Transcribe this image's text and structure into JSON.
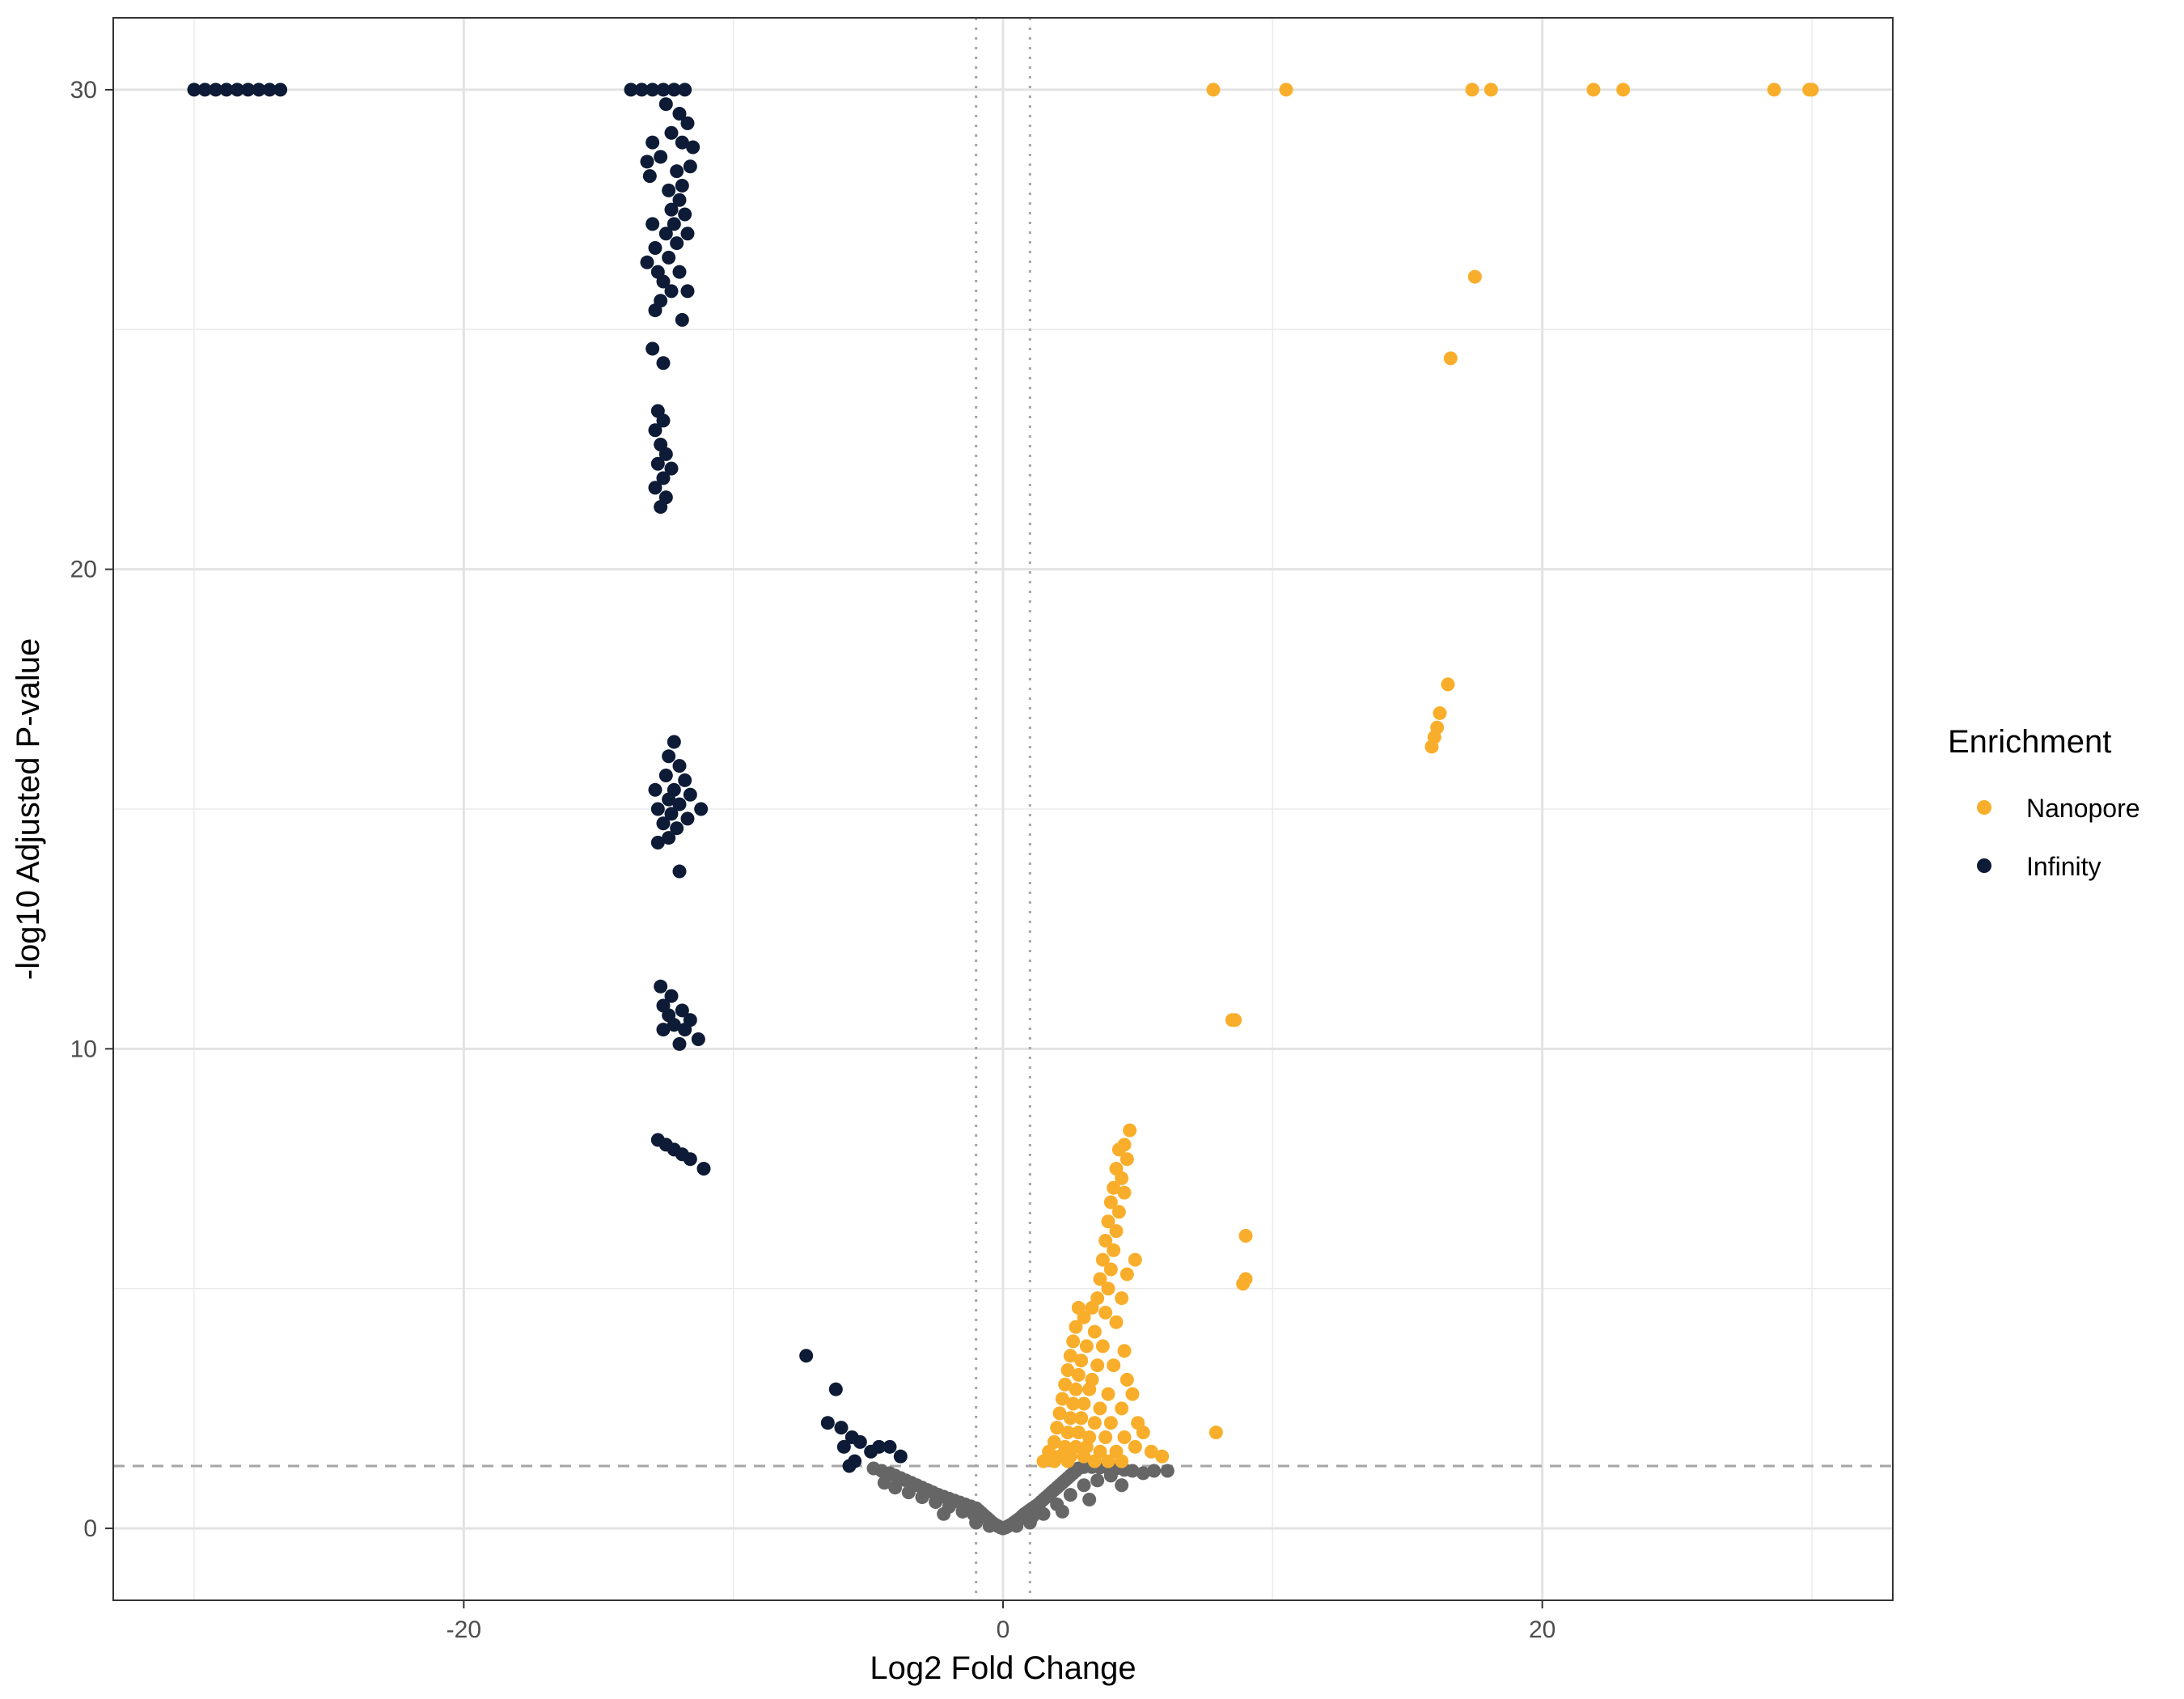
{
  "chart_data": {
    "type": "scatter",
    "title": "",
    "xlabel": "Log2 Fold Change",
    "ylabel": "-log10 Adjusted P-value",
    "xlim": [
      -33,
      33
    ],
    "ylim": [
      -1.5,
      31.5
    ],
    "x_ticks": [
      {
        "value": -20,
        "label": "-20"
      },
      {
        "value": 0,
        "label": "0"
      },
      {
        "value": 20,
        "label": "20"
      }
    ],
    "y_ticks": [
      {
        "value": 0,
        "label": "0"
      },
      {
        "value": 10,
        "label": "10"
      },
      {
        "value": 20,
        "label": "20"
      },
      {
        "value": 30,
        "label": "30"
      }
    ],
    "x_minor_ticks": [
      -30,
      -10,
      10,
      30
    ],
    "y_minor_ticks": [
      5,
      15,
      25
    ],
    "grid": true,
    "reference_lines": {
      "vertical_dotted": [
        -1,
        1
      ],
      "horizontal_dashed": 1.3
    },
    "legend": {
      "title": "Enrichment",
      "placement": "right",
      "entries": [
        {
          "label": "Nanopore",
          "color": "#F9AE2B"
        },
        {
          "label": "Infinity",
          "color": "#0E1B36"
        }
      ]
    },
    "colors": {
      "Nanopore": "#F9AE2B",
      "Infinity": "#0E1B36",
      "Not significant": "#666666"
    },
    "series": [
      {
        "group": "Nanopore",
        "points": [
          [
            7.8,
            30
          ],
          [
            10.5,
            30
          ],
          [
            17.4,
            30
          ],
          [
            18.1,
            30
          ],
          [
            21.9,
            30
          ],
          [
            23,
            30
          ],
          [
            28.6,
            30
          ],
          [
            29.9,
            30
          ],
          [
            30,
            30
          ],
          [
            17.5,
            26.1
          ],
          [
            16.6,
            24.4
          ],
          [
            16.5,
            17.6
          ],
          [
            16.2,
            17
          ],
          [
            16.1,
            16.7
          ],
          [
            16,
            16.5
          ],
          [
            15.9,
            16.3
          ],
          [
            8.5,
            10.6
          ],
          [
            8.6,
            10.6
          ],
          [
            9,
            6.1
          ],
          [
            9,
            5.2
          ],
          [
            8.9,
            5.1
          ],
          [
            7.9,
            2
          ],
          [
            4.7,
            8.3
          ],
          [
            4.5,
            8.0
          ],
          [
            4.3,
            7.9
          ],
          [
            4.6,
            7.7
          ],
          [
            4.2,
            7.5
          ],
          [
            4.4,
            7.3
          ],
          [
            4.1,
            7.1
          ],
          [
            4.5,
            7.0
          ],
          [
            4.0,
            6.8
          ],
          [
            4.3,
            6.6
          ],
          [
            3.9,
            6.4
          ],
          [
            4.2,
            6.2
          ],
          [
            3.8,
            6.0
          ],
          [
            4.1,
            5.8
          ],
          [
            3.7,
            5.6
          ],
          [
            4.9,
            5.6
          ],
          [
            4.0,
            5.4
          ],
          [
            4.6,
            5.3
          ],
          [
            3.6,
            5.2
          ],
          [
            3.9,
            5.0
          ],
          [
            3.5,
            4.8
          ],
          [
            4.4,
            4.8
          ],
          [
            3.3,
            4.6
          ],
          [
            3.8,
            4.5
          ],
          [
            2.8,
            4.6
          ],
          [
            3.0,
            4.4
          ],
          [
            4.2,
            4.3
          ],
          [
            2.7,
            4.2
          ],
          [
            3.4,
            4.1
          ],
          [
            2.6,
            3.9
          ],
          [
            3.1,
            3.8
          ],
          [
            3.7,
            3.8
          ],
          [
            4.5,
            3.7
          ],
          [
            2.5,
            3.6
          ],
          [
            2.9,
            3.5
          ],
          [
            3.5,
            3.4
          ],
          [
            4.1,
            3.4
          ],
          [
            2.4,
            3.3
          ],
          [
            2.8,
            3.2
          ],
          [
            3.3,
            3.1
          ],
          [
            4.6,
            3.1
          ],
          [
            2.3,
            3.0
          ],
          [
            2.7,
            2.9
          ],
          [
            3.2,
            2.9
          ],
          [
            3.9,
            2.8
          ],
          [
            4.8,
            2.8
          ],
          [
            2.2,
            2.7
          ],
          [
            2.6,
            2.6
          ],
          [
            3.0,
            2.6
          ],
          [
            3.6,
            2.5
          ],
          [
            4.4,
            2.5
          ],
          [
            2.1,
            2.4
          ],
          [
            2.5,
            2.3
          ],
          [
            2.9,
            2.3
          ],
          [
            3.4,
            2.2
          ],
          [
            4.0,
            2.2
          ],
          [
            5.0,
            2.2
          ],
          [
            2.0,
            2.1
          ],
          [
            2.4,
            2.0
          ],
          [
            2.8,
            2.0
          ],
          [
            3.2,
            1.9
          ],
          [
            3.8,
            1.9
          ],
          [
            4.5,
            1.9
          ],
          [
            5.2,
            2.0
          ],
          [
            1.9,
            1.8
          ],
          [
            2.3,
            1.7
          ],
          [
            2.7,
            1.7
          ],
          [
            3.1,
            1.7
          ],
          [
            3.6,
            1.6
          ],
          [
            4.2,
            1.6
          ],
          [
            4.9,
            1.7
          ],
          [
            1.7,
            1.6
          ],
          [
            2.1,
            1.5
          ],
          [
            2.5,
            1.5
          ],
          [
            3.0,
            1.5
          ],
          [
            3.4,
            1.4
          ],
          [
            3.9,
            1.4
          ],
          [
            4.4,
            1.4
          ],
          [
            1.5,
            1.4
          ],
          [
            1.9,
            1.4
          ],
          [
            2.4,
            1.4
          ],
          [
            5.9,
            1.5
          ],
          [
            5.5,
            1.6
          ]
        ]
      },
      {
        "group": "Infinity",
        "points": [
          [
            -30,
            30
          ],
          [
            -29.6,
            30
          ],
          [
            -29.2,
            30
          ],
          [
            -28.8,
            30
          ],
          [
            -28.4,
            30
          ],
          [
            -28,
            30
          ],
          [
            -27.6,
            30
          ],
          [
            -27.2,
            30
          ],
          [
            -26.8,
            30
          ],
          [
            -13.8,
            30
          ],
          [
            -13.4,
            30
          ],
          [
            -13.0,
            30
          ],
          [
            -12.6,
            30
          ],
          [
            -12.2,
            30
          ],
          [
            -11.8,
            30
          ],
          [
            -12.5,
            29.7
          ],
          [
            -12.0,
            29.5
          ],
          [
            -11.7,
            29.3
          ],
          [
            -12.3,
            29.1
          ],
          [
            -11.9,
            28.9
          ],
          [
            -13.0,
            28.9
          ],
          [
            -11.5,
            28.8
          ],
          [
            -12.7,
            28.6
          ],
          [
            -13.2,
            28.5
          ],
          [
            -11.6,
            28.4
          ],
          [
            -12.1,
            28.3
          ],
          [
            -13.1,
            28.2
          ],
          [
            -11.9,
            28.0
          ],
          [
            -12.4,
            27.9
          ],
          [
            -12.0,
            27.7
          ],
          [
            -12.3,
            27.5
          ],
          [
            -11.8,
            27.4
          ],
          [
            -12.2,
            27.2
          ],
          [
            -13.0,
            27.2
          ],
          [
            -12.5,
            27.0
          ],
          [
            -11.7,
            27.0
          ],
          [
            -12.1,
            26.8
          ],
          [
            -12.9,
            26.7
          ],
          [
            -12.4,
            26.5
          ],
          [
            -13.2,
            26.4
          ],
          [
            -12.8,
            26.2
          ],
          [
            -12.0,
            26.2
          ],
          [
            -12.6,
            26.0
          ],
          [
            -12.3,
            25.8
          ],
          [
            -11.7,
            25.8
          ],
          [
            -12.7,
            25.6
          ],
          [
            -12.9,
            25.4
          ],
          [
            -11.9,
            25.2
          ],
          [
            -13.0,
            24.6
          ],
          [
            -12.6,
            24.3
          ],
          [
            -12.8,
            23.3
          ],
          [
            -12.6,
            23.1
          ],
          [
            -12.9,
            22.9
          ],
          [
            -12.7,
            22.6
          ],
          [
            -12.5,
            22.4
          ],
          [
            -12.8,
            22.2
          ],
          [
            -12.3,
            22.1
          ],
          [
            -12.6,
            21.9
          ],
          [
            -12.9,
            21.7
          ],
          [
            -12.5,
            21.5
          ],
          [
            -12.7,
            21.3
          ],
          [
            -12.2,
            16.4
          ],
          [
            -12.4,
            16.1
          ],
          [
            -12.0,
            15.9
          ],
          [
            -12.5,
            15.7
          ],
          [
            -11.8,
            15.6
          ],
          [
            -12.2,
            15.4
          ],
          [
            -12.9,
            15.4
          ],
          [
            -11.6,
            15.3
          ],
          [
            -12.4,
            15.2
          ],
          [
            -12.0,
            15.1
          ],
          [
            -11.2,
            15.0
          ],
          [
            -12.8,
            15.0
          ],
          [
            -12.3,
            14.9
          ],
          [
            -11.7,
            14.8
          ],
          [
            -12.6,
            14.7
          ],
          [
            -12.1,
            14.6
          ],
          [
            -12.4,
            14.4
          ],
          [
            -12.8,
            14.3
          ],
          [
            -12.0,
            13.7
          ],
          [
            -12.7,
            11.3
          ],
          [
            -12.3,
            11.1
          ],
          [
            -12.6,
            10.9
          ],
          [
            -11.9,
            10.8
          ],
          [
            -12.4,
            10.7
          ],
          [
            -11.6,
            10.6
          ],
          [
            -12.2,
            10.5
          ],
          [
            -12.6,
            10.4
          ],
          [
            -11.8,
            10.4
          ],
          [
            -11.3,
            10.2
          ],
          [
            -12.0,
            10.1
          ],
          [
            -12.8,
            8.1
          ],
          [
            -12.5,
            8.0
          ],
          [
            -12.2,
            7.9
          ],
          [
            -11.9,
            7.8
          ],
          [
            -11.6,
            7.7
          ],
          [
            -11.1,
            7.5
          ],
          [
            -7.3,
            3.6
          ],
          [
            -6.2,
            2.9
          ],
          [
            -6.5,
            2.2
          ],
          [
            -6.0,
            2.1
          ],
          [
            -5.6,
            1.9
          ],
          [
            -5.9,
            1.7
          ],
          [
            -5.3,
            1.8
          ],
          [
            -4.9,
            1.6
          ],
          [
            -4.6,
            1.7
          ],
          [
            -4.2,
            1.7
          ],
          [
            -5.5,
            1.4
          ],
          [
            -3.8,
            1.5
          ],
          [
            -5.7,
            1.3
          ]
        ]
      },
      {
        "group": "Not significant",
        "points": [
          [
            0,
            0
          ],
          [
            0.1,
            0.02
          ],
          [
            -0.1,
            0.02
          ],
          [
            0.2,
            0.05
          ],
          [
            -0.2,
            0.05
          ],
          [
            0.3,
            0.08
          ],
          [
            -0.3,
            0.08
          ],
          [
            0.4,
            0.12
          ],
          [
            -0.4,
            0.12
          ],
          [
            0.5,
            0.16
          ],
          [
            -0.5,
            0.17
          ],
          [
            0.6,
            0.2
          ],
          [
            -0.6,
            0.22
          ],
          [
            0.7,
            0.25
          ],
          [
            -0.7,
            0.27
          ],
          [
            0.8,
            0.3
          ],
          [
            -0.8,
            0.32
          ],
          [
            0.9,
            0.34
          ],
          [
            -0.9,
            0.37
          ],
          [
            1.0,
            0.38
          ],
          [
            -1.0,
            0.42
          ],
          [
            1.1,
            0.42
          ],
          [
            -1.2,
            0.46
          ],
          [
            1.2,
            0.46
          ],
          [
            -1.4,
            0.5
          ],
          [
            1.3,
            0.5
          ],
          [
            -1.6,
            0.54
          ],
          [
            1.4,
            0.55
          ],
          [
            -1.8,
            0.58
          ],
          [
            1.5,
            0.6
          ],
          [
            -2.0,
            0.62
          ],
          [
            1.6,
            0.65
          ],
          [
            -2.2,
            0.66
          ],
          [
            1.7,
            0.7
          ],
          [
            -2.4,
            0.7
          ],
          [
            1.8,
            0.75
          ],
          [
            -2.6,
            0.75
          ],
          [
            1.9,
            0.8
          ],
          [
            -2.8,
            0.8
          ],
          [
            2.0,
            0.85
          ],
          [
            -3.0,
            0.85
          ],
          [
            2.1,
            0.9
          ],
          [
            -3.2,
            0.9
          ],
          [
            2.2,
            0.95
          ],
          [
            -3.4,
            0.95
          ],
          [
            2.3,
            1.0
          ],
          [
            -3.6,
            1.0
          ],
          [
            2.4,
            1.05
          ],
          [
            -3.8,
            1.05
          ],
          [
            2.5,
            1.1
          ],
          [
            -4.0,
            1.1
          ],
          [
            2.6,
            1.15
          ],
          [
            -4.2,
            1.15
          ],
          [
            2.7,
            1.2
          ],
          [
            -4.5,
            1.2
          ],
          [
            2.8,
            1.25
          ],
          [
            -4.8,
            1.25
          ],
          [
            3.0,
            1.28
          ],
          [
            3.3,
            1.28
          ],
          [
            3.6,
            1.27
          ],
          [
            3.9,
            1.26
          ],
          [
            4.2,
            1.25
          ],
          [
            4.5,
            1.22
          ],
          [
            4.8,
            1.2
          ],
          [
            5.2,
            1.15
          ],
          [
            5.6,
            1.2
          ],
          [
            6.1,
            1.2
          ],
          [
            -1.1,
            0.3
          ],
          [
            1.1,
            0.25
          ],
          [
            -1.5,
            0.35
          ],
          [
            1.5,
            0.3
          ],
          [
            2.0,
            0.5
          ],
          [
            -2.0,
            0.45
          ],
          [
            2.5,
            0.7
          ],
          [
            -2.5,
            0.55
          ],
          [
            3.0,
            0.9
          ],
          [
            -3.0,
            0.65
          ],
          [
            3.5,
            1.0
          ],
          [
            -3.5,
            0.75
          ],
          [
            4.0,
            1.1
          ],
          [
            -4.0,
            0.85
          ],
          [
            0.5,
            0.05
          ],
          [
            -0.5,
            0.05
          ],
          [
            1.0,
            0.12
          ],
          [
            -1.0,
            0.12
          ],
          [
            2.2,
            0.35
          ],
          [
            -2.2,
            0.3
          ],
          [
            3.2,
            0.6
          ],
          [
            4.4,
            0.9
          ],
          [
            -4.4,
            0.95
          ]
        ]
      }
    ]
  }
}
